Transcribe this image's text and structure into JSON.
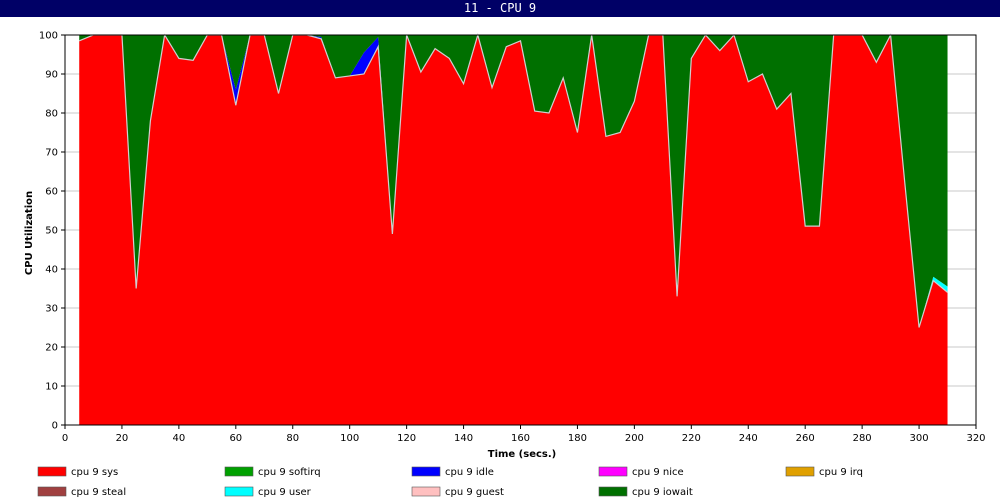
{
  "window": {
    "title": "11 - CPU 9"
  },
  "chart_data": {
    "type": "area",
    "stacked": true,
    "title": "",
    "xlabel": "Time (secs.)",
    "ylabel": "CPU Utilization",
    "xlim": [
      0,
      320
    ],
    "ylim": [
      0,
      100
    ],
    "xticks": [
      0,
      20,
      40,
      60,
      80,
      100,
      120,
      140,
      160,
      180,
      200,
      220,
      240,
      260,
      280,
      300,
      320
    ],
    "yticks": [
      0,
      10,
      20,
      30,
      40,
      50,
      60,
      70,
      80,
      90,
      100
    ],
    "grid": true,
    "legend_position": "bottom",
    "x": [
      5,
      10,
      15,
      20,
      25,
      30,
      35,
      40,
      45,
      50,
      55,
      60,
      65,
      70,
      75,
      80,
      85,
      90,
      95,
      100,
      105,
      110,
      115,
      120,
      125,
      130,
      135,
      140,
      145,
      150,
      155,
      160,
      165,
      170,
      175,
      180,
      185,
      190,
      195,
      200,
      205,
      210,
      215,
      220,
      225,
      230,
      235,
      240,
      245,
      250,
      255,
      260,
      265,
      270,
      275,
      280,
      285,
      290,
      295,
      300,
      305,
      310
    ],
    "series": [
      {
        "name": "cpu 9 sys",
        "color": "#ff0000",
        "values": [
          98.5,
          100,
          100,
          100,
          35,
          78,
          100,
          94,
          93.5,
          100,
          100,
          82,
          100,
          100,
          85,
          100,
          100,
          99,
          89,
          89.5,
          90,
          97,
          49,
          100,
          90.5,
          96.5,
          94,
          87.5,
          100,
          86.5,
          97,
          98.5,
          80.5,
          80,
          89,
          75,
          100,
          74,
          75,
          83,
          100,
          100,
          33,
          94,
          100,
          96,
          100,
          88,
          90,
          81,
          85,
          51,
          51,
          100,
          100,
          100,
          93,
          100,
          62,
          25,
          37,
          34
        ]
      },
      {
        "name": "cpu 9 softirq",
        "color": "#00a000",
        "values": [
          0,
          0,
          0,
          0,
          0,
          0,
          0,
          0,
          0,
          0,
          0,
          0,
          0,
          0,
          0,
          0,
          0,
          0,
          0,
          0,
          0,
          0,
          0,
          0,
          0,
          0,
          0,
          0,
          0,
          0,
          0,
          0,
          0,
          0,
          0,
          0,
          0,
          0,
          0,
          0,
          0,
          0,
          0,
          0,
          0,
          0,
          0,
          0,
          0,
          0,
          0,
          0,
          0,
          0,
          0,
          0,
          0,
          0,
          0,
          0,
          0,
          0
        ]
      },
      {
        "name": "cpu 9 idle",
        "color": "#0000ff",
        "values": [
          0,
          0,
          0,
          0,
          0,
          0,
          0,
          0,
          0,
          0,
          0,
          4,
          0,
          0,
          0,
          0,
          0,
          0.5,
          0,
          0,
          5.5,
          2.5,
          0,
          0,
          0,
          0,
          0,
          0,
          0,
          0,
          0,
          0,
          0,
          0,
          0,
          0,
          0,
          0,
          0,
          0,
          0,
          0,
          0,
          0,
          0,
          0,
          0,
          0,
          0,
          0,
          0,
          0,
          0,
          0,
          0,
          0,
          0,
          0,
          0,
          0,
          0,
          0
        ]
      },
      {
        "name": "cpu 9 nice",
        "color": "#ff00ff",
        "values": [
          0,
          0,
          0,
          0,
          0,
          0,
          0,
          0,
          0,
          0,
          0,
          0,
          0,
          0,
          0,
          0,
          0,
          0,
          0,
          0,
          0,
          0,
          0,
          0,
          0,
          0,
          0,
          0,
          0,
          0,
          0,
          0,
          0,
          0,
          0,
          0,
          0,
          0,
          0,
          0,
          0,
          0,
          0,
          0,
          0,
          0,
          0,
          0,
          0,
          0,
          0,
          0,
          0,
          0,
          0,
          0,
          0,
          0,
          0,
          0,
          0,
          0
        ]
      },
      {
        "name": "cpu 9 irq",
        "color": "#e0a000",
        "values": [
          0,
          0,
          0,
          0,
          0,
          0,
          0,
          0,
          0,
          0,
          0,
          0,
          0,
          0,
          0,
          0,
          0,
          0,
          0,
          0,
          0,
          0,
          0,
          0,
          0,
          0,
          0,
          0,
          0,
          0,
          0,
          0,
          0,
          0,
          0,
          0,
          0,
          0,
          0,
          0,
          0,
          0,
          0,
          0,
          0,
          0,
          0,
          0,
          0,
          0,
          0,
          0,
          0,
          0,
          0,
          0,
          0,
          0,
          0,
          0,
          0,
          0
        ]
      },
      {
        "name": "cpu 9 steal",
        "color": "#a04040",
        "values": [
          0,
          0,
          0,
          0,
          0,
          0,
          0,
          0,
          0,
          0,
          0,
          0,
          0,
          0,
          0,
          0,
          0,
          0,
          0,
          0,
          0,
          0,
          0,
          0,
          0,
          0,
          0,
          0,
          0,
          0,
          0,
          0,
          0,
          0,
          0,
          0,
          0,
          0,
          0,
          0,
          0,
          0,
          0,
          0,
          0,
          0,
          0,
          0,
          0,
          0,
          0,
          0,
          0,
          0,
          0,
          0,
          0,
          0,
          0,
          0,
          0,
          0
        ]
      },
      {
        "name": "cpu 9 user",
        "color": "#00ffff",
        "values": [
          0,
          0,
          0,
          0,
          0,
          0,
          0,
          0,
          0,
          0,
          0,
          0,
          0,
          0,
          0,
          0,
          0,
          0,
          0,
          0,
          0,
          0,
          0,
          0,
          0,
          0,
          0,
          0,
          0,
          0,
          0,
          0,
          0,
          0,
          0,
          0,
          0,
          0,
          0,
          0,
          0,
          0,
          0,
          0,
          0,
          0,
          0,
          0,
          0,
          0,
          0,
          0,
          0,
          0,
          0,
          0,
          0,
          0,
          0,
          0,
          1,
          1.5
        ]
      },
      {
        "name": "cpu 9 guest",
        "color": "#ffc0c0",
        "values": [
          0,
          0,
          0,
          0,
          0,
          0,
          0,
          0,
          0,
          0,
          0,
          0,
          0,
          0,
          0,
          0,
          0,
          0,
          0,
          0,
          0,
          0,
          0,
          0,
          0,
          0,
          0,
          0,
          0,
          0,
          0,
          0,
          0,
          0,
          0,
          0,
          0,
          0,
          0,
          0,
          0,
          0,
          0,
          0,
          0,
          0,
          0,
          0,
          0,
          0,
          0,
          0,
          0,
          0,
          0,
          0,
          0,
          0,
          0,
          0,
          0,
          0
        ]
      },
      {
        "name": "cpu 9 iowait",
        "color": "#007000",
        "values": [
          1.5,
          0,
          0,
          0,
          65,
          22,
          0,
          6,
          6.5,
          0,
          0,
          14,
          0,
          0,
          15,
          0,
          0,
          0.5,
          11,
          10.5,
          4.5,
          0.5,
          51,
          0,
          9.5,
          3.5,
          6,
          12.5,
          0,
          13.5,
          3,
          1.5,
          19.5,
          20,
          11,
          25,
          0,
          26,
          25,
          17,
          0,
          0,
          67,
          6,
          0,
          4,
          0,
          12,
          10,
          19,
          15,
          49,
          49,
          0,
          0,
          0,
          7,
          0,
          38,
          75,
          62,
          64.5
        ]
      }
    ]
  }
}
